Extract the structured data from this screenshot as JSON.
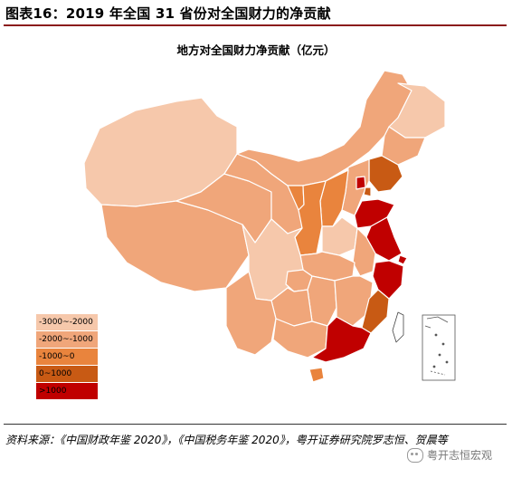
{
  "figure_title": "图表16：2019 年全国 31 省份对全国财力的净贡献",
  "map_title": "地方对全国财力净贡献（亿元）",
  "legend": [
    {
      "label": "-3000~-2000",
      "color": "#f6c8ab"
    },
    {
      "label": "-2000~-1000",
      "color": "#f0a67a"
    },
    {
      "label": "-1000~0",
      "color": "#e9843d"
    },
    {
      "label": "0~1000",
      "color": "#c85a14"
    },
    {
      "label": ">1000",
      "color": "#c00000"
    }
  ],
  "source_text": "资料来源：《中国财政年鉴 2020》，《中国税务年鉴 2020》，粤开证券研究院罗志恒、贺晨等",
  "watermark": "粤开志恒宏观",
  "icons": {
    "watermark": "wechat-icon"
  }
}
